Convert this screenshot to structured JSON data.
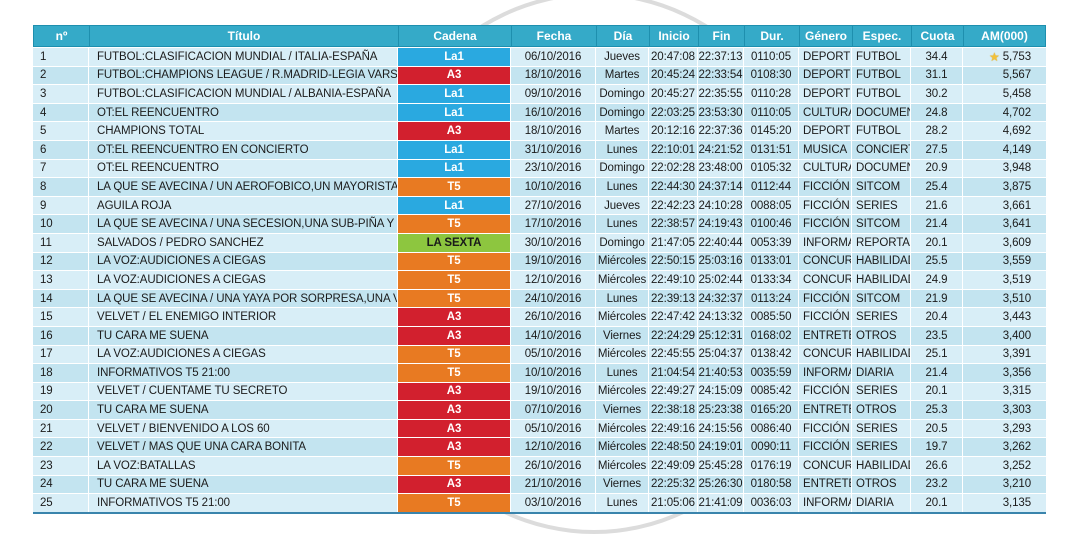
{
  "table": {
    "columns": [
      {
        "key": "n",
        "label": "nº"
      },
      {
        "key": "titulo",
        "label": "Título"
      },
      {
        "key": "cadena",
        "label": "Cadena"
      },
      {
        "key": "fecha",
        "label": "Fecha"
      },
      {
        "key": "dia",
        "label": "Día"
      },
      {
        "key": "inicio",
        "label": "Inicio"
      },
      {
        "key": "fin",
        "label": "Fin"
      },
      {
        "key": "dur",
        "label": "Dur."
      },
      {
        "key": "genero",
        "label": "Género"
      },
      {
        "key": "espec",
        "label": "Espec."
      },
      {
        "key": "cuota",
        "label": "Cuota"
      },
      {
        "key": "am",
        "label": "AM(000)"
      }
    ],
    "rows": [
      {
        "n": "1",
        "titulo": "FUTBOL:CLASIFICACION MUNDIAL / ITALIA-ESPAÑA",
        "cadena": "La1",
        "fecha": "06/10/2016",
        "dia": "Jueves",
        "inicio": "20:47:08",
        "fin": "22:37:13",
        "dur": "0110:05",
        "genero": "DEPORTES",
        "espec": "FUTBOL",
        "cuota": "34.4",
        "am": "5,753",
        "star": true
      },
      {
        "n": "2",
        "titulo": "FUTBOL:CHAMPIONS LEAGUE / R.MADRID-LEGIA VARSOVIA",
        "cadena": "A3",
        "fecha": "18/10/2016",
        "dia": "Martes",
        "inicio": "20:45:24",
        "fin": "22:33:54",
        "dur": "0108:30",
        "genero": "DEPORTES",
        "espec": "FUTBOL",
        "cuota": "31.1",
        "am": "5,567"
      },
      {
        "n": "3",
        "titulo": "FUTBOL:CLASIFICACION MUNDIAL / ALBANIA-ESPAÑA",
        "cadena": "La1",
        "fecha": "09/10/2016",
        "dia": "Domingo",
        "inicio": "20:45:27",
        "fin": "22:35:55",
        "dur": "0110:28",
        "genero": "DEPORTES",
        "espec": "FUTBOL",
        "cuota": "30.2",
        "am": "5,458"
      },
      {
        "n": "4",
        "titulo": "OT:EL REENCUENTRO",
        "cadena": "La1",
        "fecha": "16/10/2016",
        "dia": "Domingo",
        "inicio": "22:03:25",
        "fin": "23:53:30",
        "dur": "0110:05",
        "genero": "CULTURALES",
        "espec": "DOCUMENTALES",
        "cuota": "24.8",
        "am": "4,702"
      },
      {
        "n": "5",
        "titulo": "CHAMPIONS TOTAL",
        "cadena": "A3",
        "fecha": "18/10/2016",
        "dia": "Martes",
        "inicio": "20:12:16",
        "fin": "22:37:36",
        "dur": "0145:20",
        "genero": "DEPORTES",
        "espec": "FUTBOL",
        "cuota": "28.2",
        "am": "4,692"
      },
      {
        "n": "6",
        "titulo": "OT:EL REENCUENTRO EN CONCIERTO",
        "cadena": "La1",
        "fecha": "31/10/2016",
        "dia": "Lunes",
        "inicio": "22:10:01",
        "fin": "24:21:52",
        "dur": "0131:51",
        "genero": "MUSICA",
        "espec": "CONCIERTOS",
        "cuota": "27.5",
        "am": "4,149"
      },
      {
        "n": "7",
        "titulo": "OT:EL REENCUENTRO",
        "cadena": "La1",
        "fecha": "23/10/2016",
        "dia": "Domingo",
        "inicio": "22:02:28",
        "fin": "23:48:00",
        "dur": "0105:32",
        "genero": "CULTURALES",
        "espec": "DOCUMENTALES",
        "cuota": "20.9",
        "am": "3,948"
      },
      {
        "n": "8",
        "titulo": "LA QUE SE AVECINA / UN AEROFOBICO,UN MAYORISTA TRA",
        "cadena": "T5",
        "fecha": "10/10/2016",
        "dia": "Lunes",
        "inicio": "22:44:30",
        "fin": "24:37:14",
        "dur": "0112:44",
        "genero": "FICCIÓN",
        "espec": "SITCOM",
        "cuota": "25.4",
        "am": "3,875"
      },
      {
        "n": "9",
        "titulo": "AGUILA ROJA",
        "cadena": "La1",
        "fecha": "27/10/2016",
        "dia": "Jueves",
        "inicio": "22:42:23",
        "fin": "24:10:28",
        "dur": "0088:05",
        "genero": "FICCIÓN",
        "espec": "SERIES",
        "cuota": "21.6",
        "am": "3,661"
      },
      {
        "n": "10",
        "titulo": "LA QUE SE AVECINA / UNA SECESION,UNA SUB-PIÑA Y SUPE",
        "cadena": "T5",
        "fecha": "17/10/2016",
        "dia": "Lunes",
        "inicio": "22:38:57",
        "fin": "24:19:43",
        "dur": "0100:46",
        "genero": "FICCIÓN",
        "espec": "SITCOM",
        "cuota": "21.4",
        "am": "3,641"
      },
      {
        "n": "11",
        "titulo": "SALVADOS / PEDRO SANCHEZ",
        "cadena": "LA SEXTA",
        "fecha": "30/10/2016",
        "dia": "Domingo",
        "inicio": "21:47:05",
        "fin": "22:40:44",
        "dur": "0053:39",
        "genero": "INFORMACIÓN",
        "espec": "REPORTAJES",
        "cuota": "20.1",
        "am": "3,609"
      },
      {
        "n": "12",
        "titulo": "LA VOZ:AUDICIONES A CIEGAS",
        "cadena": "T5",
        "fecha": "19/10/2016",
        "dia": "Miércoles",
        "inicio": "22:50:15",
        "fin": "25:03:16",
        "dur": "0133:01",
        "genero": "CONCURSOS",
        "espec": "HABILIDADES",
        "cuota": "25.5",
        "am": "3,559"
      },
      {
        "n": "13",
        "titulo": "LA VOZ:AUDICIONES A CIEGAS",
        "cadena": "T5",
        "fecha": "12/10/2016",
        "dia": "Miércoles",
        "inicio": "22:49:10",
        "fin": "25:02:44",
        "dur": "0133:34",
        "genero": "CONCURSOS",
        "espec": "HABILIDADES",
        "cuota": "24.9",
        "am": "3,519"
      },
      {
        "n": "14",
        "titulo": "LA QUE SE AVECINA / UNA YAYA POR SORPRESA,UNA VASEC",
        "cadena": "T5",
        "fecha": "24/10/2016",
        "dia": "Lunes",
        "inicio": "22:39:13",
        "fin": "24:32:37",
        "dur": "0113:24",
        "genero": "FICCIÓN",
        "espec": "SITCOM",
        "cuota": "21.9",
        "am": "3,510"
      },
      {
        "n": "15",
        "titulo": "VELVET / EL ENEMIGO INTERIOR",
        "cadena": "A3",
        "fecha": "26/10/2016",
        "dia": "Miércoles",
        "inicio": "22:47:42",
        "fin": "24:13:32",
        "dur": "0085:50",
        "genero": "FICCIÓN",
        "espec": "SERIES",
        "cuota": "20.4",
        "am": "3,443"
      },
      {
        "n": "16",
        "titulo": "TU CARA ME SUENA",
        "cadena": "A3",
        "fecha": "14/10/2016",
        "dia": "Viernes",
        "inicio": "22:24:29",
        "fin": "25:12:31",
        "dur": "0168:02",
        "genero": "ENTRETENIMIENTO",
        "espec": "OTROS",
        "cuota": "23.5",
        "am": "3,400"
      },
      {
        "n": "17",
        "titulo": "LA VOZ:AUDICIONES A CIEGAS",
        "cadena": "T5",
        "fecha": "05/10/2016",
        "dia": "Miércoles",
        "inicio": "22:45:55",
        "fin": "25:04:37",
        "dur": "0138:42",
        "genero": "CONCURSOS",
        "espec": "HABILIDADES",
        "cuota": "25.1",
        "am": "3,391"
      },
      {
        "n": "18",
        "titulo": "INFORMATIVOS T5 21:00",
        "cadena": "T5",
        "fecha": "10/10/2016",
        "dia": "Lunes",
        "inicio": "21:04:54",
        "fin": "21:40:53",
        "dur": "0035:59",
        "genero": "INFORMATIVOS",
        "espec": "DIARIA",
        "cuota": "21.4",
        "am": "3,356"
      },
      {
        "n": "19",
        "titulo": "VELVET / CUENTAME TU SECRETO",
        "cadena": "A3",
        "fecha": "19/10/2016",
        "dia": "Miércoles",
        "inicio": "22:49:27",
        "fin": "24:15:09",
        "dur": "0085:42",
        "genero": "FICCIÓN",
        "espec": "SERIES",
        "cuota": "20.1",
        "am": "3,315"
      },
      {
        "n": "20",
        "titulo": "TU CARA ME SUENA",
        "cadena": "A3",
        "fecha": "07/10/2016",
        "dia": "Viernes",
        "inicio": "22:38:18",
        "fin": "25:23:38",
        "dur": "0165:20",
        "genero": "ENTRETENIMIENTO",
        "espec": "OTROS",
        "cuota": "25.3",
        "am": "3,303"
      },
      {
        "n": "21",
        "titulo": "VELVET / BIENVENIDO A LOS 60",
        "cadena": "A3",
        "fecha": "05/10/2016",
        "dia": "Miércoles",
        "inicio": "22:49:16",
        "fin": "24:15:56",
        "dur": "0086:40",
        "genero": "FICCIÓN",
        "espec": "SERIES",
        "cuota": "20.5",
        "am": "3,293"
      },
      {
        "n": "22",
        "titulo": "VELVET / MAS QUE UNA CARA BONITA",
        "cadena": "A3",
        "fecha": "12/10/2016",
        "dia": "Miércoles",
        "inicio": "22:48:50",
        "fin": "24:19:01",
        "dur": "0090:11",
        "genero": "FICCIÓN",
        "espec": "SERIES",
        "cuota": "19.7",
        "am": "3,262"
      },
      {
        "n": "23",
        "titulo": "LA VOZ:BATALLAS",
        "cadena": "T5",
        "fecha": "26/10/2016",
        "dia": "Miércoles",
        "inicio": "22:49:09",
        "fin": "25:45:28",
        "dur": "0176:19",
        "genero": "CONCURSOS",
        "espec": "HABILIDADES",
        "cuota": "26.6",
        "am": "3,252"
      },
      {
        "n": "24",
        "titulo": "TU CARA ME SUENA",
        "cadena": "A3",
        "fecha": "21/10/2016",
        "dia": "Viernes",
        "inicio": "22:25:32",
        "fin": "25:26:30",
        "dur": "0180:58",
        "genero": "ENTRETENIMIENTO",
        "espec": "OTROS",
        "cuota": "23.2",
        "am": "3,210"
      },
      {
        "n": "25",
        "titulo": "INFORMATIVOS T5 21:00",
        "cadena": "T5",
        "fecha": "03/10/2016",
        "dia": "Lunes",
        "inicio": "21:05:06",
        "fin": "21:41:09",
        "dur": "0036:03",
        "genero": "INFORMATIVOS",
        "espec": "DIARIA",
        "cuota": "20.1",
        "am": "3,135"
      }
    ]
  },
  "channels": {
    "La1": {
      "bg": "#2aa9e0",
      "fg": "#ffffff"
    },
    "A3": {
      "bg": "#d2202e",
      "fg": "#ffffff"
    },
    "T5": {
      "bg": "#e87a22",
      "fg": "#ffffff"
    },
    "LA SEXTA": {
      "bg": "#8dc63f",
      "fg": "#1a1a1a"
    }
  },
  "icons": {
    "star": "★"
  },
  "colors": {
    "header_bg": "#35aac8",
    "header_grid": "#1e8fae",
    "row_odd": "#d8eef7",
    "row_even": "#c3e4f0",
    "bottom_border": "#3a84ac",
    "star": "#f2c139"
  }
}
